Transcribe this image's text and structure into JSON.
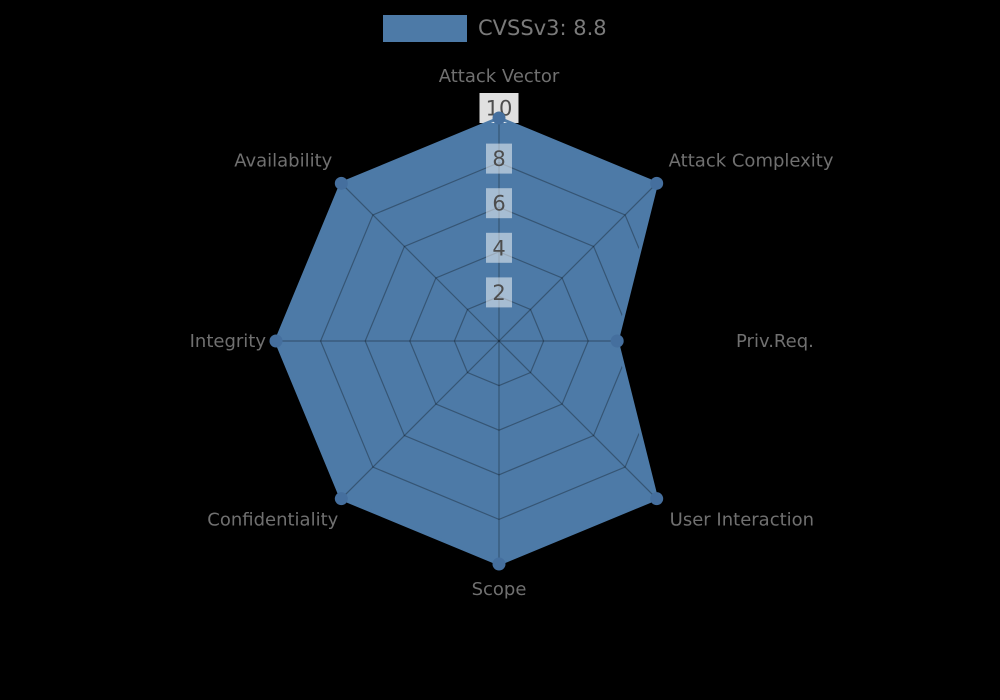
{
  "chart_data": {
    "type": "radar",
    "title": "",
    "legend_label": "CVSSv3: 8.8",
    "legend_position": "top-center",
    "categories": [
      "Attack Vector",
      "Attack Complexity",
      "Priv.Req.",
      "User Interaction",
      "Scope",
      "Confidentiality",
      "Integrity",
      "Availability"
    ],
    "series": [
      {
        "name": "CVSSv3: 8.8",
        "values": [
          10,
          10,
          5.3,
          10,
          10,
          10,
          10,
          10
        ]
      }
    ],
    "radial_ticks": [
      2,
      4,
      6,
      8,
      10
    ],
    "rlim": [
      0,
      10
    ],
    "grid": true,
    "colors": {
      "series_fill": "#4d7aa7",
      "series_stroke": "#4d7aa7",
      "marker": "#456f9e",
      "grid_line": "rgba(0,0,0,0.30)",
      "tick_box": "#ffffff",
      "tick_text": "#4d4d4d",
      "axis_label_text": "#707070",
      "legend_text": "#7a7a7a",
      "background": "#000000"
    }
  }
}
